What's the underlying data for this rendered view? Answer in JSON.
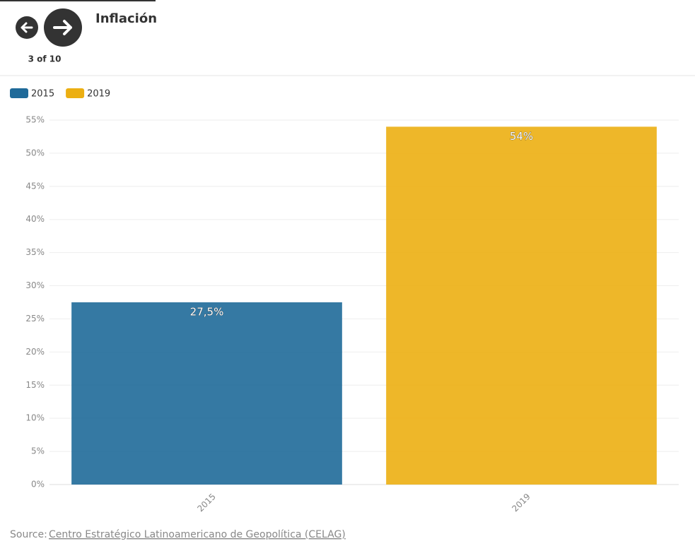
{
  "header": {
    "counter": "3 of 10"
  },
  "chart_data": {
    "type": "bar",
    "title": "Inflación",
    "categories": [
      "2015",
      "2019"
    ],
    "series": [
      {
        "name": "2015",
        "color": "#1f6a99",
        "values": [
          27.5,
          null
        ],
        "value_labels": [
          "27,5%",
          null
        ]
      },
      {
        "name": "2019",
        "color": "#ecaf12",
        "values": [
          null,
          54
        ],
        "value_labels": [
          null,
          "54%"
        ]
      }
    ],
    "ylim": [
      0,
      55
    ],
    "yticks": [
      {
        "value": 0,
        "label": "0%"
      },
      {
        "value": 5,
        "label": "5%"
      },
      {
        "value": 10,
        "label": "10%"
      },
      {
        "value": 15,
        "label": "15%"
      },
      {
        "value": 20,
        "label": "20%"
      },
      {
        "value": 25,
        "label": "25%"
      },
      {
        "value": 30,
        "label": "30%"
      },
      {
        "value": 35,
        "label": "35%"
      },
      {
        "value": 40,
        "label": "40%"
      },
      {
        "value": 45,
        "label": "45%"
      },
      {
        "value": 50,
        "label": "50%"
      },
      {
        "value": 55,
        "label": "55%"
      }
    ],
    "grid": true
  },
  "footer": {
    "source_label": "Source:",
    "source_link": "Centro Estratégico Latinoamericano de Geopolítica (CELAG)"
  }
}
